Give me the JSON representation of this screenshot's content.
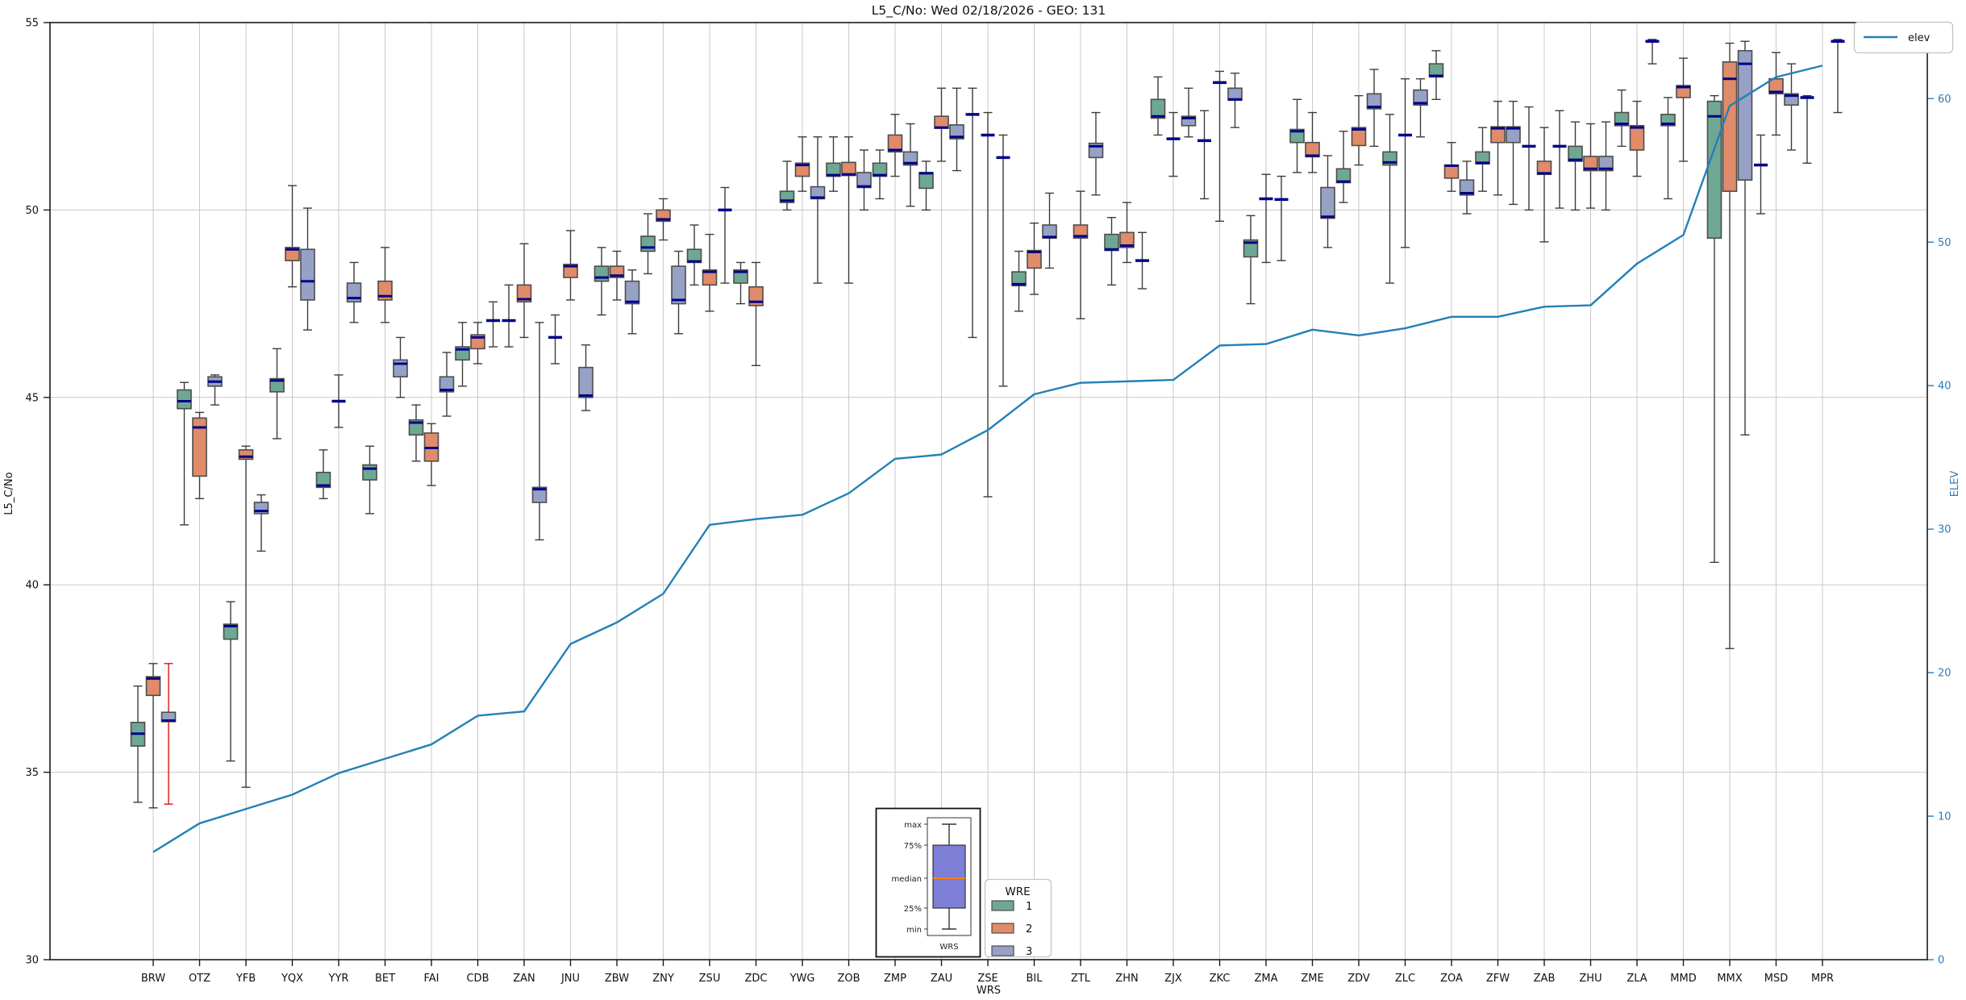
{
  "title": "L5_C/No: Wed 02/18/2026 - GEO: 131",
  "axes": {
    "left": {
      "label": "L5_C/No",
      "ticks": [
        30,
        35,
        40,
        45,
        50,
        55
      ],
      "grid_ticks": [
        35,
        40,
        45,
        50
      ],
      "color": "#1a1a1a"
    },
    "right": {
      "label": "ELEV",
      "ticks": [
        0,
        10,
        20,
        30,
        40,
        50,
        60
      ],
      "color": "#2b7bba"
    },
    "x": {
      "label": "WRS"
    }
  },
  "legend": {
    "elev_label": "elev"
  },
  "wre_legend": {
    "title": "WRE",
    "items": [
      {
        "label": "1",
        "color": "#6fa892"
      },
      {
        "label": "2",
        "color": "#e08b69"
      },
      {
        "label": "3",
        "color": "#96a1c5"
      }
    ]
  },
  "inset": {
    "labels": {
      "max": "max",
      "q3": "75%",
      "median": "median",
      "q1": "25%",
      "min": "min"
    },
    "xlabel": "WRS",
    "box_color": "#7d7fd6",
    "median_color": "#ff7f0e"
  },
  "colors": {
    "box_border": "#4d4d4d",
    "whisker": "#3c3c3c",
    "median": "#00008b",
    "red_whisker": "#e01010",
    "grid": "#c9c9c9",
    "spine": "#1a1a1a",
    "elev_line": "#2380b8"
  },
  "chart_data": {
    "type": "box",
    "title": "L5_C/No: Wed 02/18/2026 - GEO: 131",
    "xlabel": "WRS",
    "ylabel_left": "L5_C/No",
    "ylabel_right": "ELEV",
    "ylim_left": [
      30,
      55
    ],
    "ylim_right": [
      0,
      65.3
    ],
    "grid": true,
    "box_format_note": "5 numbers = [whisker_lo,q1,median,q3,whisker_hi]; 3 numbers = [whisker_lo,median,whisker_hi] drawn as navy median dash only; null = no data",
    "categories": [
      "BRW",
      "OTZ",
      "YFB",
      "YQX",
      "YYR",
      "BET",
      "FAI",
      "CDB",
      "ZAN",
      "JNU",
      "ZBW",
      "ZNY",
      "ZSU",
      "ZDC",
      "YWG",
      "ZOB",
      "ZMP",
      "ZAU",
      "ZSE",
      "BIL",
      "ZTL",
      "ZHN",
      "ZJX",
      "ZKC",
      "ZMA",
      "ZME",
      "ZDV",
      "ZLC",
      "ZOA",
      "ZFW",
      "ZAB",
      "ZHU",
      "ZLA",
      "MMD",
      "MMX",
      "MSD",
      "MPR"
    ],
    "median_color": "#00008b",
    "special": {
      "red_whisker_station": "BRW",
      "red_whisker_wre": "3"
    },
    "wre_series": [
      {
        "name": "1",
        "color": "#6fa892",
        "boxes": [
          [
            34.2,
            35.7,
            36.03,
            36.33,
            37.3
          ],
          [
            41.6,
            44.7,
            44.9,
            45.2,
            45.4
          ],
          [
            35.3,
            38.55,
            38.9,
            38.95,
            39.55
          ],
          [
            43.9,
            45.15,
            45.45,
            45.5,
            46.3
          ],
          [
            42.3,
            42.6,
            42.65,
            43.0,
            43.6
          ],
          [
            41.9,
            42.8,
            43.1,
            43.2,
            43.7
          ],
          [
            43.3,
            44.0,
            44.33,
            44.4,
            44.8
          ],
          [
            45.3,
            46.0,
            46.28,
            46.35,
            47.0
          ],
          [
            46.35,
            47.05,
            48.0
          ],
          [
            45.9,
            46.6,
            47.2
          ],
          [
            47.2,
            48.1,
            48.2,
            48.5,
            49.0
          ],
          [
            48.3,
            48.9,
            49.0,
            49.3,
            49.9
          ],
          [
            48.0,
            48.6,
            48.63,
            48.95,
            49.6
          ],
          [
            47.5,
            48.05,
            48.35,
            48.4,
            48.6
          ],
          [
            50.0,
            50.2,
            50.25,
            50.5,
            51.3
          ],
          [
            50.5,
            50.9,
            50.93,
            51.25,
            51.95
          ],
          [
            50.3,
            50.9,
            50.93,
            51.25,
            51.6
          ],
          [
            50.0,
            50.58,
            50.98,
            51.0,
            51.3
          ],
          [
            46.6,
            52.55,
            53.25
          ],
          [
            47.3,
            47.98,
            48.02,
            48.35,
            48.9
          ],
          null,
          [
            48.0,
            48.92,
            48.95,
            49.35,
            49.8
          ],
          [
            52.0,
            52.45,
            52.5,
            52.95,
            53.55
          ],
          [
            50.3,
            51.85,
            52.65
          ],
          [
            47.5,
            48.75,
            49.13,
            49.2,
            49.85
          ],
          [
            51.0,
            51.8,
            52.1,
            52.15,
            52.95
          ],
          [
            50.2,
            50.73,
            50.76,
            51.1,
            52.1
          ],
          [
            48.05,
            51.2,
            51.27,
            51.55,
            52.55
          ],
          [
            52.95,
            53.55,
            53.58,
            53.9,
            54.25
          ],
          [
            50.5,
            51.23,
            51.26,
            51.55,
            52.2
          ],
          [
            50.0,
            51.7,
            52.75
          ],
          [
            50.0,
            51.3,
            51.34,
            51.7,
            52.35
          ],
          [
            51.7,
            52.25,
            52.3,
            52.6,
            53.2
          ],
          [
            50.3,
            52.25,
            52.3,
            52.55,
            53.0
          ],
          [
            40.6,
            49.25,
            52.5,
            52.9,
            53.05
          ],
          [
            49.9,
            51.2,
            52.0
          ],
          [
            51.25,
            53.0,
            53.05
          ]
        ]
      },
      {
        "name": "2",
        "color": "#e08b69",
        "boxes": [
          [
            34.05,
            37.05,
            37.5,
            37.55,
            37.9
          ],
          [
            42.3,
            42.9,
            44.2,
            44.45,
            44.6
          ],
          [
            34.6,
            43.35,
            43.42,
            43.6,
            43.7
          ],
          [
            47.95,
            48.65,
            48.95,
            49.0,
            50.65
          ],
          [
            44.2,
            44.9,
            45.6
          ],
          [
            47.0,
            47.6,
            47.7,
            48.1,
            49.0
          ],
          [
            42.65,
            43.3,
            43.65,
            44.05,
            44.3
          ],
          [
            45.9,
            46.3,
            46.6,
            46.67,
            47.0
          ],
          [
            46.6,
            47.55,
            47.62,
            48.0,
            49.1
          ],
          [
            47.6,
            48.2,
            48.5,
            48.55,
            49.45
          ],
          [
            47.6,
            48.2,
            48.25,
            48.5,
            48.9
          ],
          [
            49.2,
            49.7,
            49.75,
            50.0,
            50.3
          ],
          [
            47.3,
            48.0,
            48.35,
            48.4,
            49.35
          ],
          [
            45.85,
            47.45,
            47.55,
            47.95,
            48.6
          ],
          [
            50.5,
            50.9,
            51.2,
            51.25,
            51.95
          ],
          [
            48.05,
            50.92,
            50.95,
            51.27,
            51.95
          ],
          [
            50.9,
            51.55,
            51.6,
            52.0,
            52.55
          ],
          [
            51.3,
            52.18,
            52.2,
            52.5,
            53.25
          ],
          [
            42.35,
            52.0,
            52.6
          ],
          [
            47.75,
            48.45,
            48.88,
            48.92,
            49.65
          ],
          [
            47.1,
            49.25,
            49.3,
            49.6,
            50.5
          ],
          [
            48.6,
            49.0,
            49.05,
            49.4,
            50.2
          ],
          [
            50.9,
            51.9,
            52.6
          ],
          [
            49.7,
            53.4,
            53.7
          ],
          [
            48.6,
            50.3,
            50.95
          ],
          [
            51.0,
            51.42,
            51.45,
            51.8,
            52.6
          ],
          [
            51.2,
            51.72,
            52.15,
            52.2,
            53.05
          ],
          [
            49.0,
            52.0,
            53.5
          ],
          [
            50.5,
            50.85,
            51.18,
            51.2,
            51.8
          ],
          [
            50.4,
            51.8,
            52.18,
            52.22,
            52.9
          ],
          [
            49.15,
            50.95,
            50.98,
            51.3,
            52.2
          ],
          [
            50.05,
            51.05,
            51.1,
            51.43,
            52.3
          ],
          [
            50.9,
            51.6,
            52.2,
            52.25,
            52.9
          ],
          [
            51.3,
            53.0,
            53.28,
            53.32,
            54.05
          ],
          [
            38.3,
            50.5,
            53.5,
            53.95,
            54.45
          ],
          [
            52.0,
            53.1,
            53.15,
            53.5,
            54.2
          ],
          null
        ]
      },
      {
        "name": "3",
        "color": "#96a1c5",
        "boxes": [
          [
            34.15,
            36.35,
            36.38,
            36.6,
            37.9
          ],
          [
            44.8,
            45.3,
            45.42,
            45.55,
            45.6
          ],
          [
            40.9,
            41.9,
            41.97,
            42.2,
            42.4
          ],
          [
            46.8,
            47.6,
            48.1,
            48.95,
            50.05
          ],
          [
            47.0,
            47.55,
            47.65,
            48.05,
            48.6
          ],
          [
            45.0,
            45.55,
            45.9,
            46.0,
            46.6
          ],
          [
            44.5,
            45.15,
            45.2,
            45.55,
            46.2
          ],
          [
            46.35,
            47.05,
            47.55
          ],
          [
            41.2,
            42.2,
            42.55,
            42.6,
            47.0
          ],
          [
            44.65,
            45.0,
            45.05,
            45.8,
            46.4
          ],
          [
            46.7,
            47.5,
            47.55,
            48.1,
            48.4
          ],
          [
            46.7,
            47.5,
            47.6,
            48.5,
            48.9
          ],
          [
            48.05,
            50.0,
            50.6
          ],
          null,
          [
            48.05,
            50.3,
            50.33,
            50.62,
            51.95
          ],
          [
            50.0,
            50.6,
            50.63,
            51.0,
            51.6
          ],
          [
            50.1,
            51.2,
            51.25,
            51.55,
            52.3
          ],
          [
            51.05,
            51.9,
            51.95,
            52.27,
            53.25
          ],
          [
            45.3,
            51.4,
            52.0
          ],
          [
            48.45,
            49.25,
            49.28,
            49.6,
            50.45
          ],
          [
            50.4,
            51.4,
            51.7,
            51.78,
            52.6
          ],
          [
            47.9,
            48.65,
            49.4
          ],
          [
            51.95,
            52.25,
            52.45,
            52.5,
            53.25
          ],
          [
            52.2,
            52.93,
            52.95,
            53.25,
            53.65
          ],
          [
            48.65,
            50.28,
            50.9
          ],
          [
            49.0,
            49.78,
            49.82,
            50.6,
            51.45
          ],
          [
            51.7,
            52.7,
            52.75,
            53.1,
            53.75
          ],
          [
            51.95,
            52.8,
            52.85,
            53.2,
            53.5
          ],
          [
            49.9,
            50.4,
            50.45,
            50.8,
            51.3
          ],
          [
            50.15,
            51.8,
            52.18,
            52.22,
            52.9
          ],
          [
            50.05,
            51.7,
            52.65
          ],
          [
            50.0,
            51.05,
            51.1,
            51.43,
            52.35
          ],
          [
            53.9,
            54.5,
            54.55
          ],
          null,
          [
            44.0,
            50.8,
            53.9,
            54.25,
            54.5
          ],
          [
            51.6,
            52.8,
            53.05,
            53.1,
            53.9
          ],
          [
            52.6,
            54.5,
            54.55
          ]
        ]
      }
    ],
    "elev_series": {
      "name": "elev",
      "color": "#2380b8",
      "values": [
        7.5,
        9.5,
        10.5,
        11.5,
        13,
        14,
        15,
        17,
        17.3,
        22,
        23.5,
        25.5,
        30.3,
        30.7,
        31,
        32.5,
        34.9,
        35.2,
        36.9,
        39.4,
        40.2,
        40.3,
        40.4,
        42.8,
        42.9,
        43.9,
        43.5,
        44.0,
        44.8,
        44.8,
        45.5,
        45.6,
        48.5,
        50.5,
        59.5,
        61.5,
        62.3
      ]
    }
  }
}
